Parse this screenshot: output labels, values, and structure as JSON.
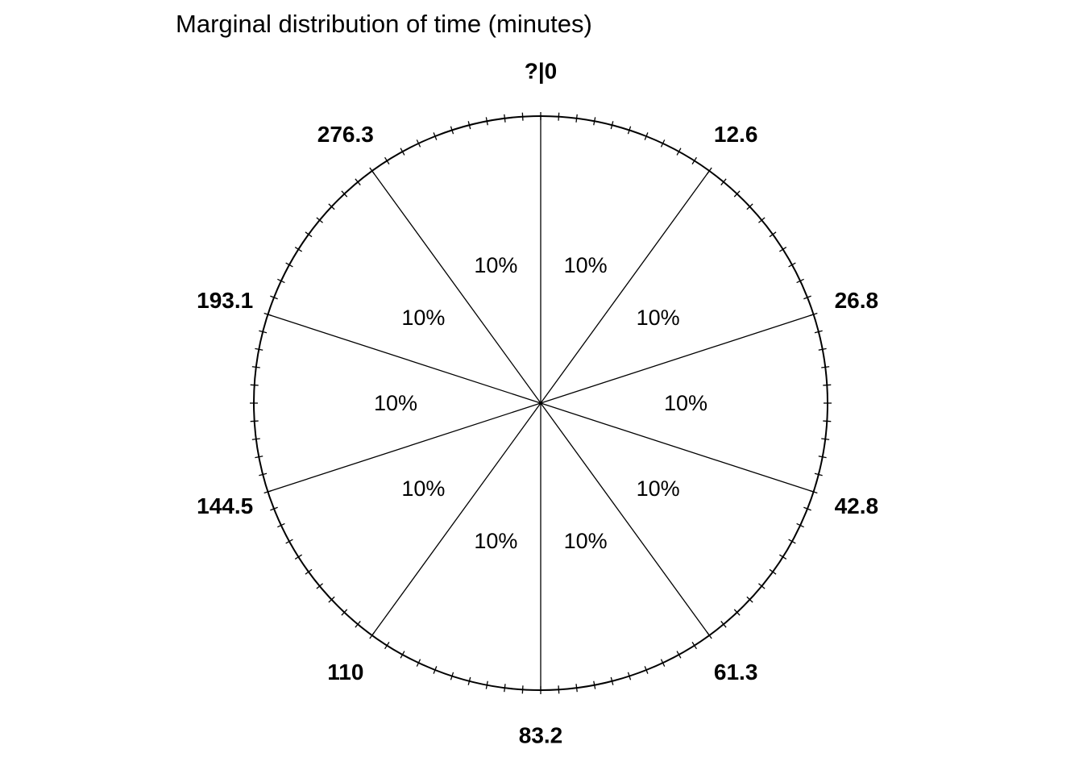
{
  "chart_data": {
    "type": "pie",
    "title": "Marginal distribution of time (minutes)",
    "boundaries": [
      {
        "angle_deg": 0,
        "label": "?|0"
      },
      {
        "angle_deg": 36,
        "label": "12.6"
      },
      {
        "angle_deg": 72,
        "label": "26.8"
      },
      {
        "angle_deg": 108,
        "label": "42.8"
      },
      {
        "angle_deg": 144,
        "label": "61.3"
      },
      {
        "angle_deg": 180,
        "label": "83.2"
      },
      {
        "angle_deg": 216,
        "label": "110"
      },
      {
        "angle_deg": 252,
        "label": "144.5"
      },
      {
        "angle_deg": 288,
        "label": "193.1"
      },
      {
        "angle_deg": 324,
        "label": "276.3"
      }
    ],
    "slices": [
      {
        "label": "10%",
        "value": 10
      },
      {
        "label": "10%",
        "value": 10
      },
      {
        "label": "10%",
        "value": 10
      },
      {
        "label": "10%",
        "value": 10
      },
      {
        "label": "10%",
        "value": 10
      },
      {
        "label": "10%",
        "value": 10
      },
      {
        "label": "10%",
        "value": 10
      },
      {
        "label": "10%",
        "value": 10
      },
      {
        "label": "10%",
        "value": 10
      },
      {
        "label": "10%",
        "value": 10
      }
    ],
    "tick_count": 100,
    "legend": "none",
    "grid": false
  }
}
